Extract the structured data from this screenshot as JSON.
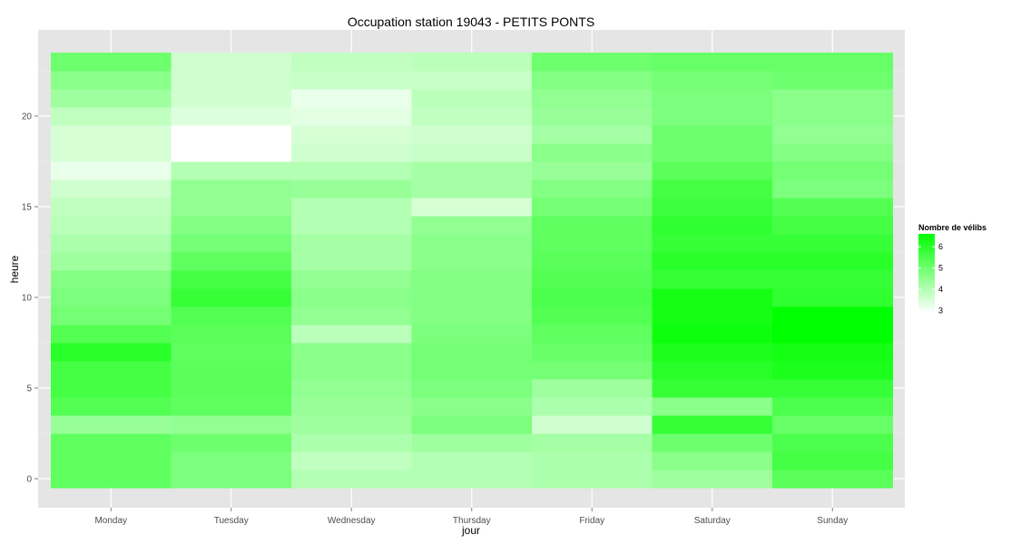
{
  "chart_data": {
    "type": "heatmap",
    "title": "Occupation station 19043 - PETITS PONTS",
    "xlabel": "jour",
    "ylabel": "heure",
    "x_categories": [
      "Monday",
      "Tuesday",
      "Wednesday",
      "Thursday",
      "Friday",
      "Saturday",
      "Sunday"
    ],
    "y_hours": [
      0,
      1,
      2,
      3,
      4,
      5,
      6,
      7,
      8,
      9,
      10,
      11,
      12,
      13,
      14,
      15,
      16,
      17,
      18,
      19,
      20,
      21,
      22,
      23
    ],
    "y_ticks": [
      0,
      5,
      10,
      15,
      20
    ],
    "ylim": [
      -0.5,
      23.5
    ],
    "grid": true,
    "legend": {
      "title": "Nombre de vélibs",
      "placement": "right",
      "min": 2.9,
      "max": 6.6,
      "ticks": [
        3,
        4,
        5,
        6
      ],
      "low_color": "#ffffff",
      "high_color": "#00ff00"
    },
    "series": [
      {
        "values": [
          5.2,
          5.2,
          5.2,
          4.4,
          5.4,
          5.6,
          5.6,
          6.0,
          5.4,
          4.9,
          4.8,
          4.7,
          4.3,
          4.1,
          3.9,
          3.8,
          3.6,
          3.2,
          3.5,
          3.5,
          3.8,
          4.3,
          4.6,
          5.0
        ]
      },
      {
        "values": [
          4.8,
          4.8,
          5.0,
          4.5,
          5.2,
          5.3,
          5.3,
          5.2,
          5.3,
          5.4,
          5.8,
          5.6,
          5.2,
          4.9,
          4.7,
          4.5,
          4.5,
          4.0,
          2.9,
          2.9,
          3.4,
          3.6,
          3.6,
          3.6
        ]
      },
      {
        "values": [
          4.0,
          3.8,
          4.1,
          4.3,
          4.4,
          4.5,
          4.6,
          4.6,
          3.9,
          4.5,
          4.6,
          4.5,
          4.2,
          4.2,
          4.0,
          4.0,
          4.4,
          4.0,
          3.6,
          3.5,
          3.3,
          3.2,
          3.7,
          3.8
        ]
      },
      {
        "values": [
          4.0,
          4.0,
          4.3,
          4.8,
          4.6,
          4.8,
          4.9,
          4.9,
          4.8,
          4.7,
          4.7,
          4.7,
          4.6,
          4.6,
          4.5,
          3.5,
          4.2,
          4.2,
          3.7,
          3.6,
          3.8,
          3.9,
          3.7,
          3.9
        ]
      },
      {
        "values": [
          4.1,
          4.1,
          4.2,
          3.6,
          4.1,
          4.3,
          4.9,
          5.1,
          5.2,
          5.4,
          5.5,
          5.4,
          5.3,
          5.2,
          5.2,
          4.9,
          4.7,
          4.4,
          4.6,
          4.2,
          4.4,
          4.5,
          4.7,
          5.0
        ]
      },
      {
        "values": [
          4.3,
          4.6,
          5.0,
          5.8,
          4.6,
          5.8,
          6.0,
          6.2,
          6.4,
          6.3,
          6.3,
          5.8,
          6.0,
          5.8,
          5.9,
          5.7,
          5.6,
          5.3,
          5.0,
          5.0,
          4.8,
          4.8,
          4.9,
          5.1
        ]
      },
      {
        "values": [
          5.3,
          5.6,
          5.5,
          5.1,
          5.5,
          5.8,
          6.2,
          6.3,
          6.6,
          6.6,
          5.9,
          5.8,
          6.0,
          5.8,
          5.6,
          5.4,
          4.8,
          4.9,
          4.7,
          4.5,
          4.6,
          4.6,
          5.0,
          5.1
        ]
      }
    ]
  }
}
